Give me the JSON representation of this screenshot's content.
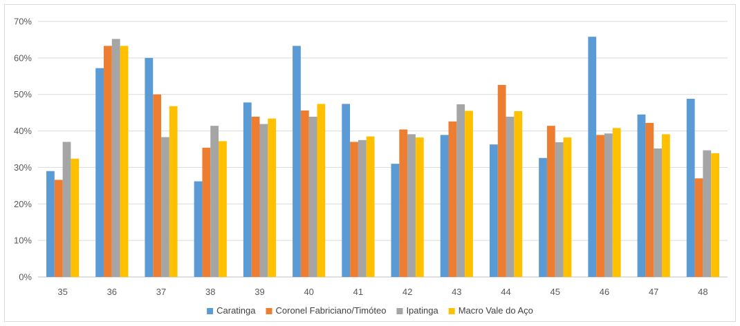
{
  "chart_data": {
    "type": "bar",
    "title": "",
    "xlabel": "",
    "ylabel": "",
    "categories": [
      "35",
      "36",
      "37",
      "38",
      "39",
      "40",
      "41",
      "42",
      "43",
      "44",
      "45",
      "46",
      "47",
      "48"
    ],
    "series": [
      {
        "name": "Caratinga",
        "color": "#5b9bd5",
        "values": [
          29.0,
          57.2,
          60.0,
          26.2,
          47.8,
          63.3,
          47.4,
          31.0,
          38.9,
          36.3,
          32.6,
          65.8,
          44.5,
          48.8
        ]
      },
      {
        "name": "Coronel Fabriciano/Timóteo",
        "color": "#ed7d31",
        "values": [
          26.6,
          63.3,
          50.0,
          35.4,
          43.9,
          45.6,
          37.0,
          40.4,
          42.6,
          52.6,
          41.4,
          38.9,
          42.2,
          27.0
        ]
      },
      {
        "name": "Ipatinga",
        "color": "#a5a5a5",
        "values": [
          37.0,
          65.2,
          38.3,
          41.4,
          41.9,
          43.9,
          37.5,
          39.1,
          47.3,
          43.9,
          36.9,
          39.3,
          35.2,
          34.7
        ]
      },
      {
        "name": "Macro Vale do Aço",
        "color": "#ffc000",
        "values": [
          32.4,
          63.3,
          46.8,
          37.2,
          43.4,
          47.4,
          38.5,
          38.2,
          45.5,
          45.4,
          38.2,
          40.8,
          39.1,
          33.9
        ]
      }
    ],
    "y_ticks": [
      "0%",
      "10%",
      "20%",
      "30%",
      "40%",
      "50%",
      "60%",
      "70%"
    ],
    "ylim": [
      0,
      70
    ],
    "grid": true,
    "legend_position": "bottom"
  }
}
